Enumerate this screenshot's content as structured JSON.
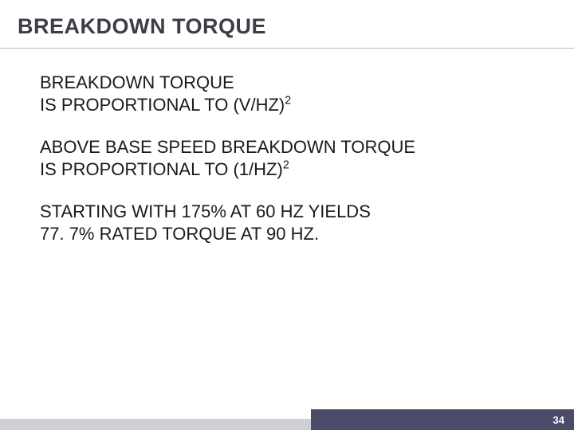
{
  "colors": {
    "title_text": "#3d3d4a",
    "body_text": "#1a1a1a",
    "rule": "#b8b8c0",
    "footer_left": "#cfcfd6",
    "footer_right": "#4b4b6a",
    "page_num": "#ffffff"
  },
  "title": "BREAKDOWN TORQUE",
  "paragraphs": [
    {
      "lines": [
        {
          "text": "BREAKDOWN TORQUE"
        },
        {
          "text": "IS PROPORTIONAL TO (V/HZ)",
          "sup": "2"
        }
      ]
    },
    {
      "lines": [
        {
          "text": "ABOVE BASE SPEED BREAKDOWN TORQUE"
        },
        {
          "text": "IS PROPORTIONAL TO (1/HZ)",
          "sup": "2"
        }
      ]
    },
    {
      "lines": [
        {
          "text": "STARTING WITH 175% AT 60 HZ YIELDS"
        },
        {
          "text": "77. 7% RATED TORQUE AT 90 HZ."
        }
      ]
    }
  ],
  "page_number": "34"
}
